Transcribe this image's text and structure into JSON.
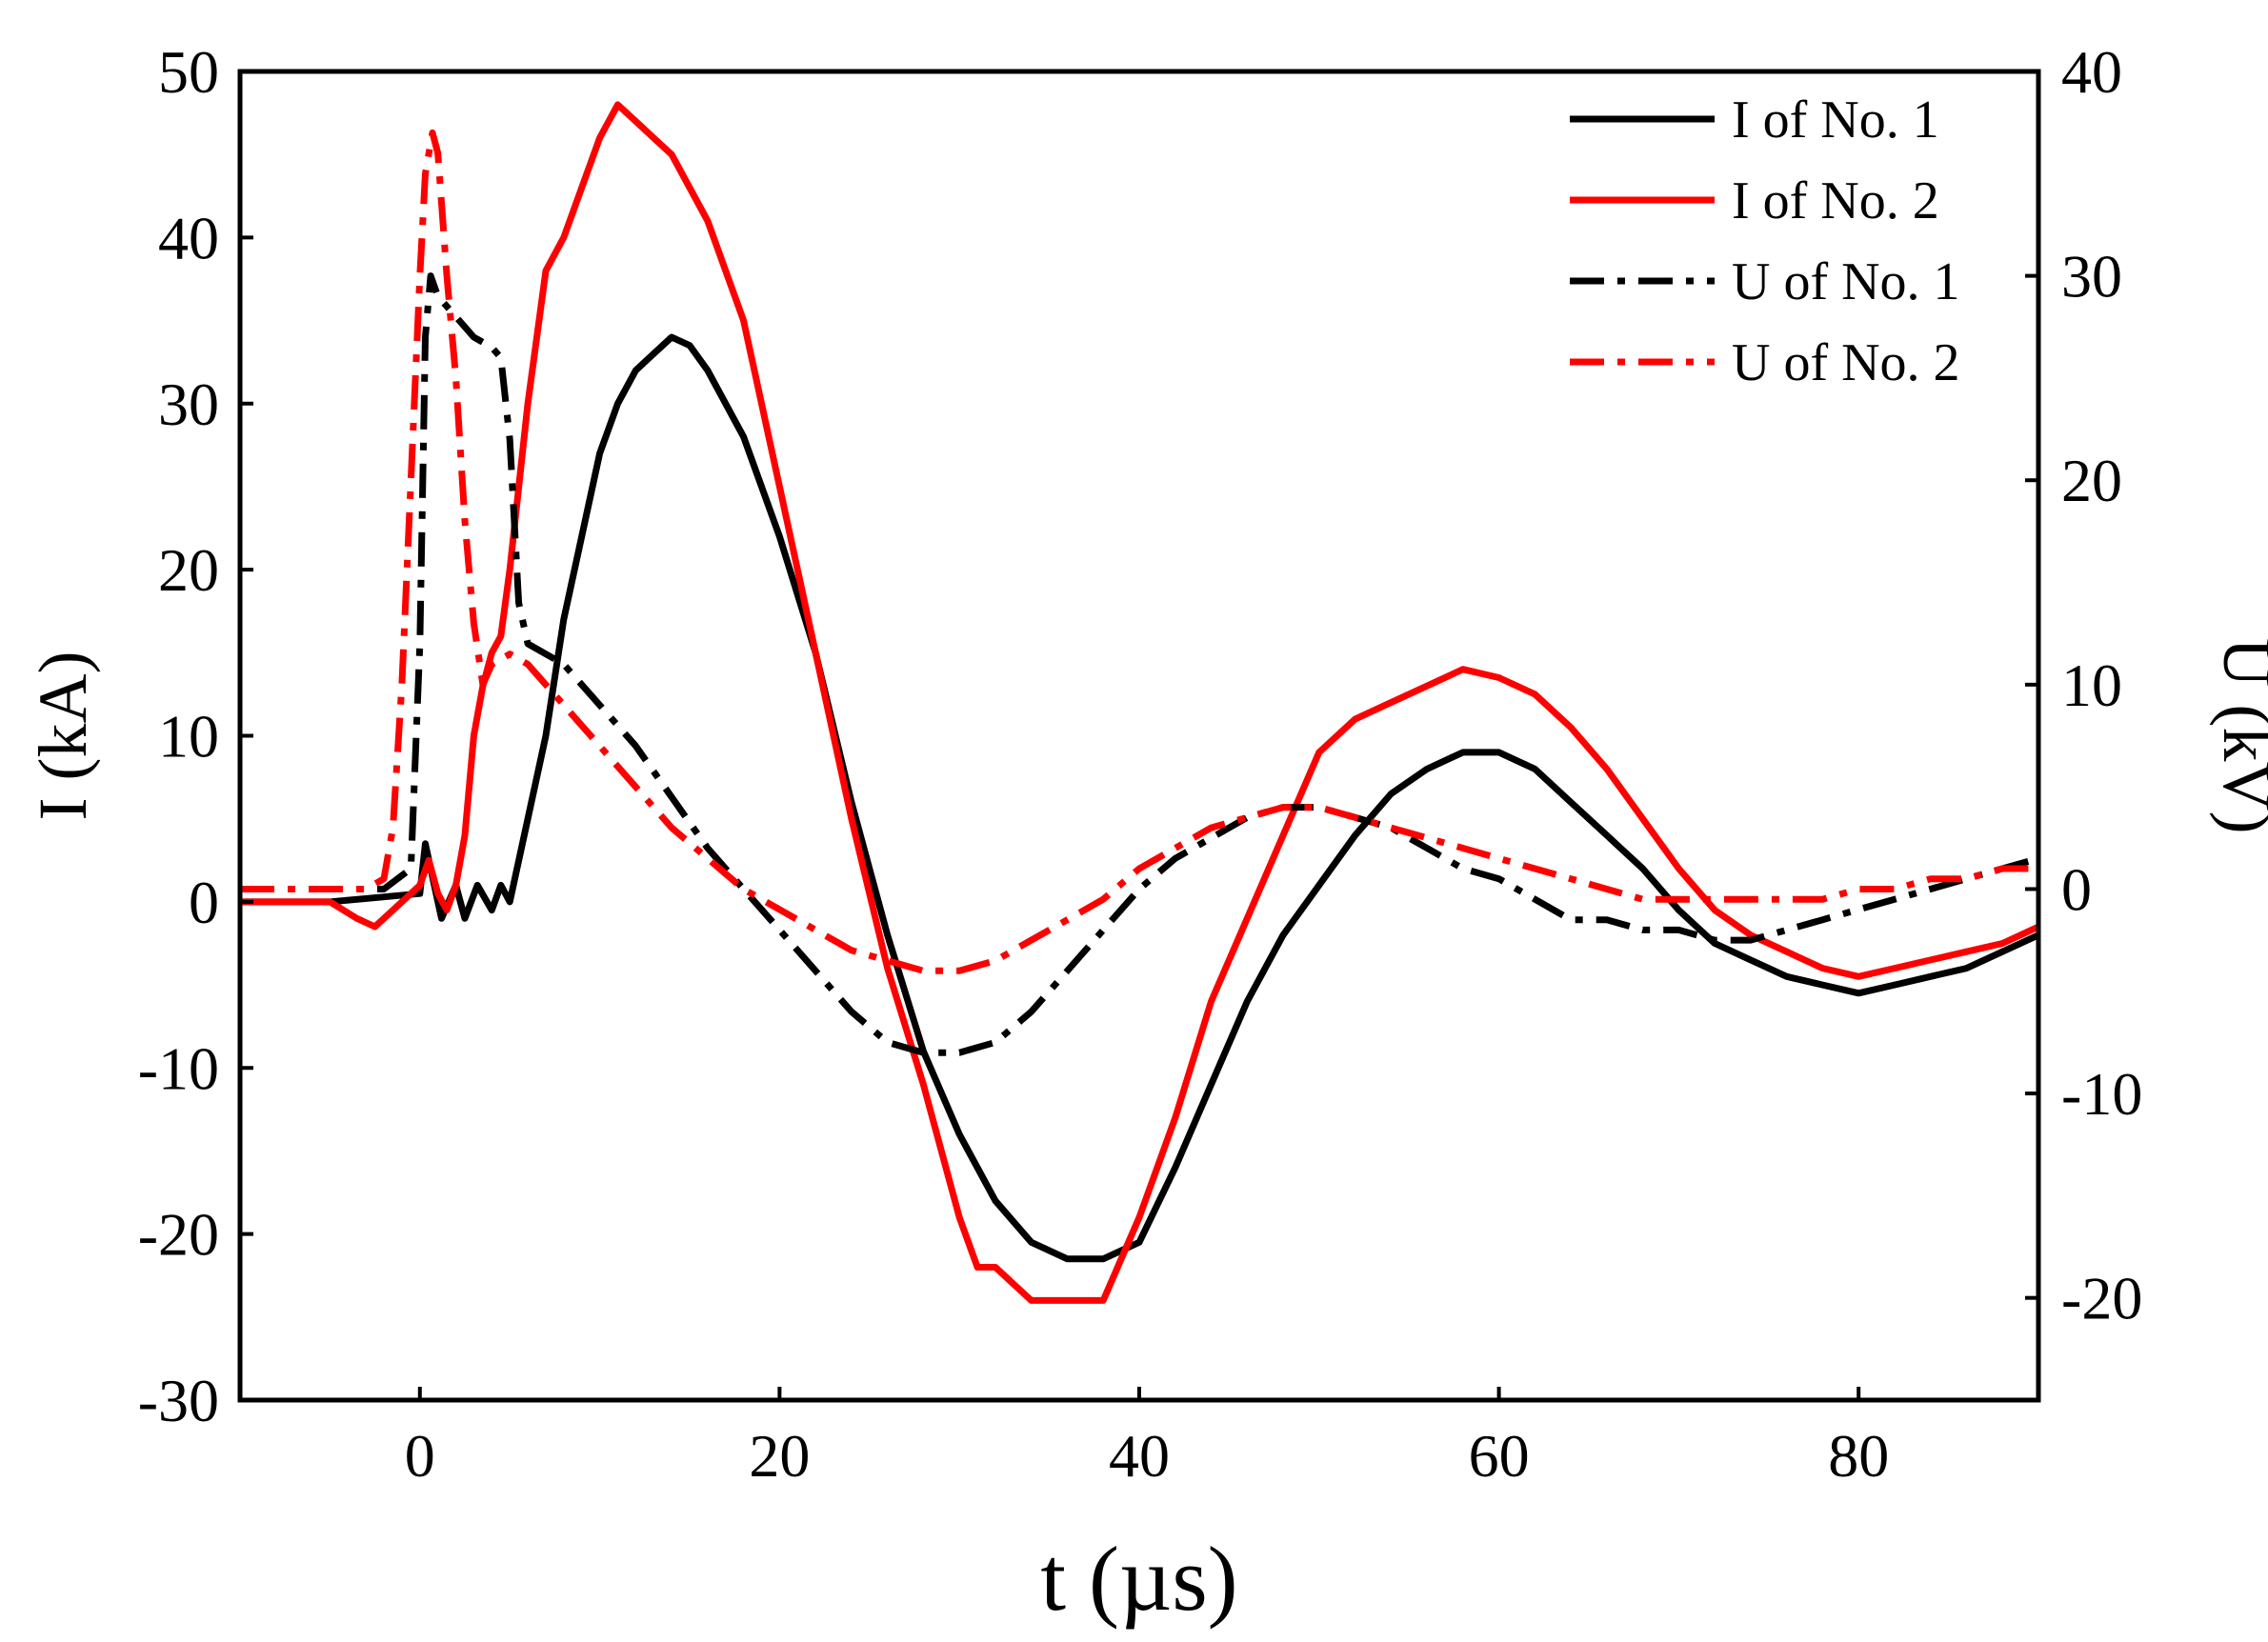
{
  "chart_data": {
    "type": "line",
    "title": "",
    "xlabel": "t (µs)",
    "ylabel": "I (kA)",
    "y2label": "U (kV)",
    "xlim": [
      -10,
      90
    ],
    "ylim": [
      -30,
      50
    ],
    "y2lim": [
      -25,
      40
    ],
    "xticks": [
      0,
      20,
      40,
      60,
      80
    ],
    "yticks": [
      -30,
      -20,
      -10,
      0,
      10,
      20,
      30,
      40,
      50
    ],
    "y2ticks": [
      -20,
      -10,
      0,
      10,
      20,
      30,
      40
    ],
    "grid": false,
    "legend_position": "top-right",
    "series": [
      {
        "name": "I of No. 1",
        "axis": "left",
        "color": "#000000",
        "style": "solid",
        "x": [
          -10,
          -5,
          0,
          0.3,
          0.8,
          1.2,
          2,
          2.5,
          3.2,
          4,
          4.5,
          5,
          6,
          7,
          8,
          9,
          10,
          11,
          12,
          13,
          14,
          15,
          16,
          18,
          20,
          22,
          24,
          26,
          28,
          30,
          32,
          34,
          36,
          38,
          40,
          42,
          44,
          46,
          48,
          50,
          52,
          54,
          56,
          58,
          60,
          62,
          64,
          66,
          68,
          70,
          72,
          74,
          76,
          78,
          80,
          82,
          84,
          86,
          88,
          90
        ],
        "y": [
          0,
          0,
          0.5,
          3.5,
          1,
          -1,
          1,
          -1,
          1,
          -0.5,
          1,
          0,
          5,
          10,
          17,
          22,
          27,
          30,
          32,
          33,
          34,
          33.5,
          32,
          28,
          22,
          15,
          6,
          -2,
          -9,
          -14,
          -18,
          -20.5,
          -21.5,
          -21.5,
          -20.5,
          -16,
          -11,
          -6,
          -2,
          1,
          4,
          6.5,
          8,
          9,
          9,
          8,
          6,
          4,
          2,
          -0.5,
          -2.5,
          -3.5,
          -4.5,
          -5,
          -5.5,
          -5,
          -4.5,
          -4,
          -3,
          -2
        ]
      },
      {
        "name": "I of No. 2",
        "axis": "left",
        "color": "#ff0000",
        "style": "solid",
        "x": [
          -10,
          -5,
          -3.5,
          -2.5,
          -1,
          0,
          0.5,
          1,
          1.5,
          2,
          2.5,
          3,
          3.5,
          4,
          4.5,
          5,
          6,
          7,
          8,
          9,
          10,
          11,
          12,
          13,
          14,
          15,
          16,
          18,
          20,
          22,
          24,
          26,
          28,
          30,
          31,
          32,
          33,
          34,
          35,
          36,
          37,
          38,
          40,
          42,
          44,
          46,
          48,
          50,
          52,
          54,
          56,
          58,
          60,
          62,
          64,
          66,
          68,
          70,
          72,
          74,
          76,
          78,
          80,
          82,
          84,
          86,
          88,
          90
        ],
        "y": [
          0,
          0,
          -1,
          -1.5,
          0,
          1,
          2.5,
          0.5,
          -0.5,
          1,
          4,
          10,
          13,
          15,
          16,
          20,
          30,
          38,
          40,
          43,
          46,
          48,
          47,
          46,
          45,
          43,
          41,
          35,
          25,
          15,
          5,
          -4,
          -11,
          -19,
          -22,
          -22,
          -23,
          -24,
          -24,
          -24,
          -24,
          -24,
          -19,
          -13,
          -6,
          -1,
          4,
          9,
          11,
          12,
          13,
          14,
          13.5,
          12.5,
          10.5,
          8,
          5,
          2,
          -0.5,
          -2,
          -3,
          -4,
          -4.5,
          -4,
          -3.5,
          -3,
          -2.5,
          -1.5
        ]
      },
      {
        "name": "U of No. 1",
        "axis": "right",
        "color": "#000000",
        "style": "dashdot",
        "x": [
          -10,
          -2,
          -0.5,
          0,
          0.3,
          0.6,
          1,
          2,
          3,
          4,
          4.5,
          5,
          5.5,
          6,
          8,
          10,
          12,
          14,
          16,
          18,
          20,
          22,
          24,
          26,
          28,
          30,
          32,
          34,
          36,
          38,
          40,
          42,
          44,
          46,
          48,
          50,
          52,
          54,
          56,
          58,
          60,
          62,
          64,
          66,
          68,
          70,
          72,
          74,
          76,
          78,
          80,
          82,
          84,
          86,
          88,
          90
        ],
        "y": [
          0,
          0,
          1,
          12,
          27,
          30,
          29,
          28,
          27,
          26.5,
          26,
          22,
          14,
          12,
          11,
          9,
          7,
          4.5,
          2,
          0,
          -2,
          -4,
          -6,
          -7.5,
          -8,
          -8,
          -7.5,
          -6,
          -4,
          -2,
          0,
          1.5,
          2.5,
          3.5,
          4,
          4,
          3.5,
          3,
          2,
          1,
          0.5,
          -0.5,
          -1.5,
          -1.5,
          -2,
          -2,
          -2.5,
          -2.5,
          -2,
          -1.5,
          -1,
          -0.5,
          0,
          0.5,
          1,
          1.5
        ]
      },
      {
        "name": "U of No. 2",
        "axis": "right",
        "color": "#ff0000",
        "style": "dashdot",
        "x": [
          -10,
          -3,
          -2,
          -1.5,
          -1,
          -0.5,
          0,
          0.3,
          0.7,
          1,
          1.5,
          2,
          2.5,
          3,
          3.5,
          4,
          5,
          6,
          8,
          10,
          12,
          14,
          16,
          18,
          20,
          22,
          24,
          26,
          28,
          30,
          32,
          34,
          36,
          38,
          40,
          42,
          44,
          46,
          48,
          50,
          52,
          54,
          56,
          58,
          60,
          62,
          64,
          66,
          68,
          70,
          72,
          74,
          76,
          78,
          80,
          82,
          84,
          86,
          88,
          90
        ],
        "y": [
          0,
          0,
          0.5,
          3,
          10,
          20,
          30,
          35,
          37,
          36,
          30,
          25,
          18,
          13,
          10,
          11,
          11.5,
          11,
          9,
          7,
          5,
          3,
          1.5,
          0,
          -1,
          -2,
          -3,
          -3.5,
          -4,
          -4,
          -3.5,
          -2.5,
          -1.5,
          -0.5,
          1,
          2,
          3,
          3.5,
          4,
          4,
          3.5,
          3,
          2.5,
          2,
          1.5,
          1,
          0.5,
          0,
          -0.5,
          -0.5,
          -0.5,
          -0.5,
          -0.5,
          -0.5,
          0,
          0,
          0.5,
          0.5,
          1,
          1
        ]
      }
    ]
  }
}
